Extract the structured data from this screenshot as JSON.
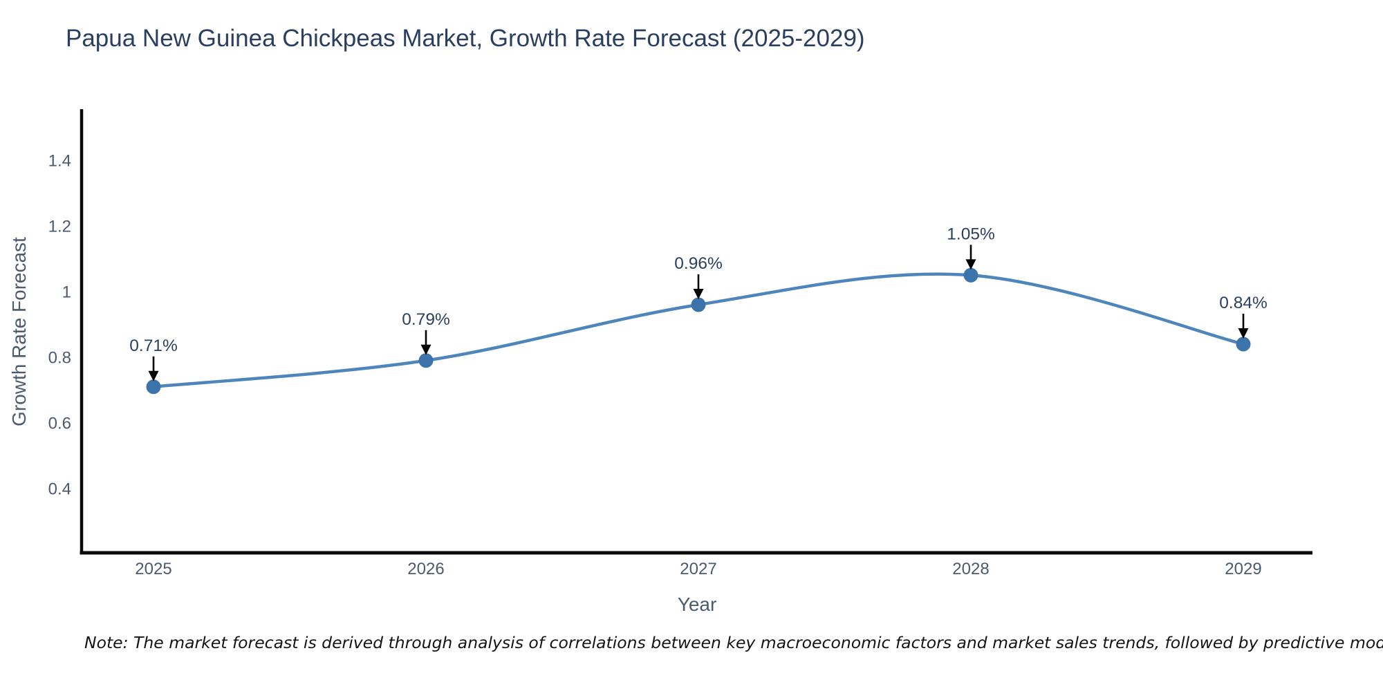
{
  "title": "Papua New Guinea Chickpeas Market, Growth Rate Forecast (2025-2029)",
  "note": "Note: The market forecast is derived through analysis of correlations between key macroeconomic factors and market sales trends, followed by predictive modeling to project future sales",
  "chart_data": {
    "type": "line",
    "line_shape": "spline",
    "title": "Papua New Guinea Chickpeas Market, Growth Rate Forecast (2025-2029)",
    "xlabel": "Year",
    "ylabel": "Growth Rate Forecast",
    "x": [
      2025,
      2026,
      2027,
      2028,
      2029
    ],
    "series": [
      {
        "name": "Growth Rate Forecast",
        "values": [
          0.71,
          0.79,
          0.96,
          1.05,
          0.84
        ]
      }
    ],
    "point_labels": [
      "0.71%",
      "0.79%",
      "0.96%",
      "1.05%",
      "0.84%"
    ],
    "yticks": [
      0.4,
      0.6,
      0.8,
      1,
      1.2,
      1.4
    ],
    "ylim": [
      0.2,
      1.56
    ],
    "grid": false,
    "legend": "none",
    "colors": {
      "line": "#4e86bc",
      "marker": "#3c73aa",
      "axis_line": "#0a0a0a",
      "tick_text": "#4c5a6e",
      "title_text": "#2a3f5f",
      "annotation_text": "#2a3f5f",
      "annotation_arrow": "#000000"
    }
  }
}
